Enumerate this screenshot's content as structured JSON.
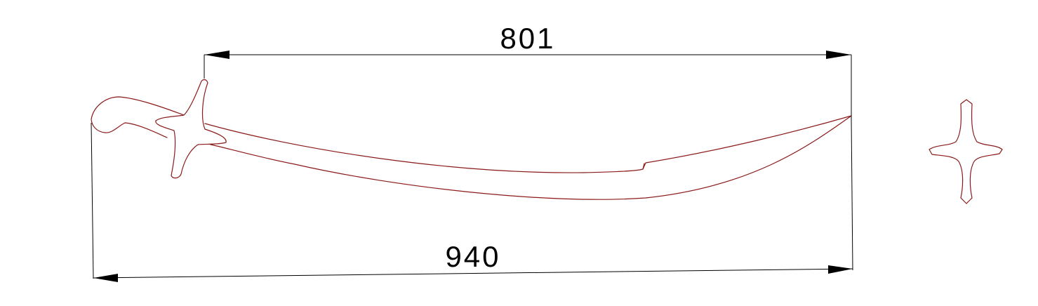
{
  "drawing": {
    "colors": {
      "outline": "#8b1a1a",
      "dimension": "#000000",
      "background": "#ffffff"
    },
    "dimensions": {
      "blade_length": {
        "value": "801"
      },
      "overall_length": {
        "value": "940"
      }
    },
    "views": [
      "side-view-sword",
      "guard-detail"
    ]
  }
}
